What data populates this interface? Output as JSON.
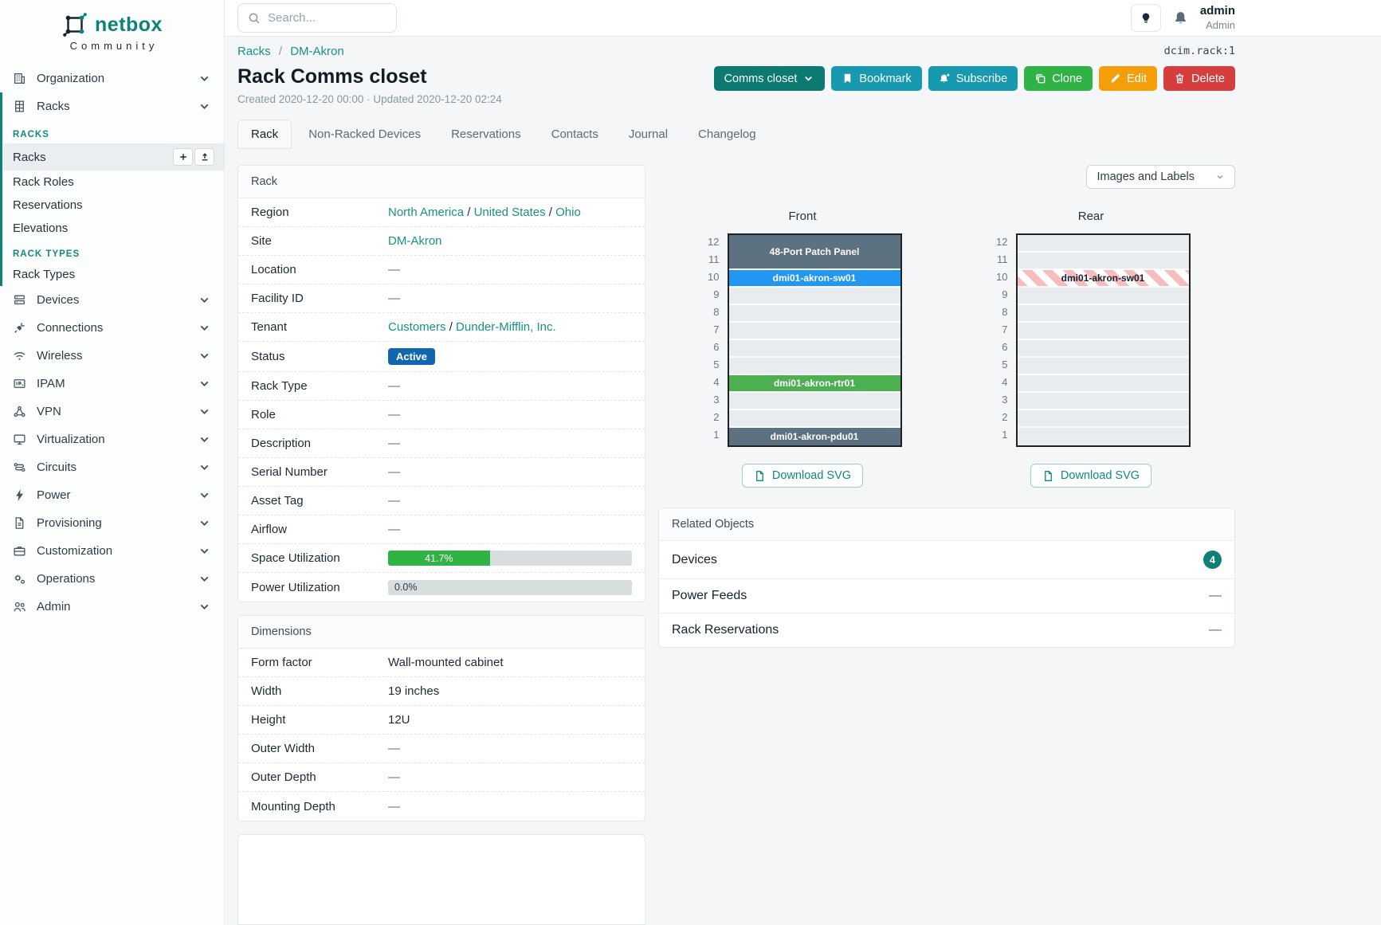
{
  "brand": {
    "name": "netbox",
    "community": "Community"
  },
  "topbar": {
    "search_placeholder": "Search...",
    "username": "admin",
    "role": "Admin"
  },
  "page": {
    "object_ref": "dcim.rack:1",
    "breadcrumbs": {
      "parent": "Racks",
      "separator": "/",
      "site": "DM-Akron"
    },
    "title": "Rack Comms closet",
    "meta": "Created 2020-12-20 00:00 · Updated 2020-12-20 02:24",
    "actions": [
      {
        "label": "Comms closet",
        "icon_right": "chevron-down",
        "color": "#0c7a70"
      },
      {
        "label": "Bookmark",
        "icon_left": "bookmark",
        "color": "#1799b0"
      },
      {
        "label": "Subscribe",
        "icon_left": "bell-plus",
        "color": "#1799b0"
      },
      {
        "label": "Clone",
        "icon_left": "copy",
        "color": "#2fb344"
      },
      {
        "label": "Edit",
        "icon_left": "pencil",
        "color": "#f49e0a"
      },
      {
        "label": "Delete",
        "icon_left": "trash",
        "color": "#d63e3e"
      }
    ],
    "tabs": [
      {
        "label": "Rack",
        "active": true
      },
      {
        "label": "Non-Racked Devices"
      },
      {
        "label": "Reservations"
      },
      {
        "label": "Contacts"
      },
      {
        "label": "Journal"
      },
      {
        "label": "Changelog"
      }
    ]
  },
  "sidebar": {
    "top_items": [
      {
        "label": "Organization",
        "icon": "building"
      },
      {
        "label": "Racks",
        "icon": "rack"
      }
    ],
    "racks_menu": {
      "section1": "RACKS",
      "items1": [
        "Racks",
        "Rack Roles",
        "Reservations",
        "Elevations"
      ],
      "section2": "RACK TYPES",
      "items2": [
        "Rack Types"
      ]
    },
    "items": [
      {
        "label": "Devices",
        "icon": "devices"
      },
      {
        "label": "Connections",
        "icon": "connections"
      },
      {
        "label": "Wireless",
        "icon": "wifi"
      },
      {
        "label": "IPAM",
        "icon": "ipam"
      },
      {
        "label": "VPN",
        "icon": "vpn"
      },
      {
        "label": "Virtualization",
        "icon": "monitor"
      },
      {
        "label": "Circuits",
        "icon": "circuits"
      },
      {
        "label": "Power",
        "icon": "lightning"
      },
      {
        "label": "Provisioning",
        "icon": "provisioning"
      },
      {
        "label": "Customization",
        "icon": "customization"
      },
      {
        "label": "Operations",
        "icon": "operations"
      },
      {
        "label": "Admin",
        "icon": "admin"
      }
    ]
  },
  "rack_panel": {
    "title": "Rack",
    "rows": [
      {
        "label": "Region",
        "links": [
          "North America",
          "United States",
          "Ohio"
        ]
      },
      {
        "label": "Site",
        "links": [
          "DM-Akron"
        ]
      },
      {
        "label": "Location",
        "value": "—"
      },
      {
        "label": "Facility ID",
        "value": "—"
      },
      {
        "label": "Tenant",
        "links": [
          "Customers",
          "Dunder-Mifflin, Inc."
        ]
      },
      {
        "label": "Status",
        "badge": {
          "text": "Active",
          "color": "#1166b1"
        }
      },
      {
        "label": "Rack Type",
        "value": "—"
      },
      {
        "label": "Role",
        "value": "—"
      },
      {
        "label": "Description",
        "value": "—"
      },
      {
        "label": "Serial Number",
        "value": "—"
      },
      {
        "label": "Asset Tag",
        "value": "—"
      },
      {
        "label": "Airflow",
        "value": "—"
      }
    ],
    "utilization": [
      {
        "label": "Space Utilization",
        "percent": 41.7,
        "text": "41.7%",
        "fill": "#2fb344"
      },
      {
        "label": "Power Utilization",
        "percent": 0,
        "text": "0.0%",
        "fill": "#2fb344"
      }
    ]
  },
  "dimensions_panel": {
    "title": "Dimensions",
    "rows": [
      {
        "label": "Form factor",
        "value": "Wall-mounted cabinet"
      },
      {
        "label": "Width",
        "value": "19 inches"
      },
      {
        "label": "Height",
        "value": "12U"
      },
      {
        "label": "Outer Width",
        "value": "—"
      },
      {
        "label": "Outer Depth",
        "value": "—"
      },
      {
        "label": "Mounting Depth",
        "value": "—"
      }
    ]
  },
  "elevation": {
    "view_select": "Images and Labels",
    "download_label": "Download SVG",
    "unit_numbers": [
      12,
      11,
      10,
      9,
      8,
      7,
      6,
      5,
      4,
      3,
      2,
      1
    ],
    "front": {
      "title": "Front",
      "slots": [
        {
          "span": 2,
          "label": "48-Port Patch Panel",
          "fill": "#5c7280"
        },
        {
          "span": 1,
          "label": "dmi01-akron-sw01",
          "fill": "#2196f3"
        },
        {
          "span": 1,
          "empty": true
        },
        {
          "span": 1,
          "empty": true
        },
        {
          "span": 1,
          "empty": true
        },
        {
          "span": 1,
          "empty": true
        },
        {
          "span": 1,
          "empty": true
        },
        {
          "span": 1,
          "label": "dmi01-akron-rtr01",
          "fill": "#4caf50"
        },
        {
          "span": 1,
          "empty": true
        },
        {
          "span": 1,
          "empty": true
        },
        {
          "span": 1,
          "label": "dmi01-akron-pdu01",
          "fill": "#5c7280"
        }
      ]
    },
    "rear": {
      "title": "Rear",
      "slots": [
        {
          "span": 1,
          "empty": true
        },
        {
          "span": 1,
          "empty": true
        },
        {
          "span": 1,
          "label": "dmi01-akron-sw01",
          "striped": true
        },
        {
          "span": 1,
          "empty": true
        },
        {
          "span": 1,
          "empty": true
        },
        {
          "span": 1,
          "empty": true
        },
        {
          "span": 1,
          "empty": true
        },
        {
          "span": 1,
          "empty": true
        },
        {
          "span": 1,
          "empty": true
        },
        {
          "span": 1,
          "empty": true
        },
        {
          "span": 1,
          "empty": true
        },
        {
          "span": 1,
          "empty": true
        }
      ]
    }
  },
  "related_objects": {
    "title": "Related Objects",
    "rows": [
      {
        "label": "Devices",
        "count": "4",
        "badge_color": "#0d8175"
      },
      {
        "label": "Power Feeds",
        "value": "—"
      },
      {
        "label": "Rack Reservations",
        "value": "—"
      }
    ]
  }
}
